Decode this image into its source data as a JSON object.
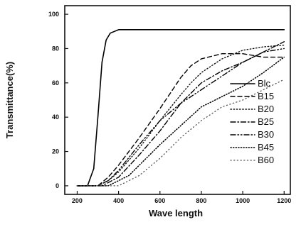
{
  "chart_data": {
    "type": "line",
    "xlabel": "Wave length",
    "ylabel": "Transmittance(%)",
    "xlim": [
      140,
      1230
    ],
    "ylim": [
      -5,
      105
    ],
    "xticks": [
      200,
      400,
      600,
      800,
      1000,
      1200
    ],
    "yticks": [
      0,
      20,
      40,
      60,
      80,
      100
    ],
    "grid": false,
    "legend_position": "right",
    "series": [
      {
        "name": "Blc",
        "style": "solid",
        "points": [
          [
            200,
            0
          ],
          [
            250,
            0
          ],
          [
            280,
            10
          ],
          [
            300,
            40
          ],
          [
            320,
            72
          ],
          [
            340,
            85
          ],
          [
            360,
            89
          ],
          [
            400,
            91
          ],
          [
            600,
            91
          ],
          [
            800,
            91
          ],
          [
            1000,
            91
          ],
          [
            1200,
            91
          ]
        ]
      },
      {
        "name": "B15",
        "style": "dashed",
        "points": [
          [
            200,
            0
          ],
          [
            300,
            0
          ],
          [
            350,
            5
          ],
          [
            400,
            12
          ],
          [
            500,
            28
          ],
          [
            600,
            45
          ],
          [
            650,
            54
          ],
          [
            700,
            63
          ],
          [
            750,
            70
          ],
          [
            800,
            74
          ],
          [
            900,
            77
          ],
          [
            1000,
            77
          ],
          [
            1100,
            75
          ],
          [
            1200,
            75
          ]
        ]
      },
      {
        "name": "B20",
        "style": "dotted",
        "points": [
          [
            200,
            0
          ],
          [
            300,
            0
          ],
          [
            350,
            3
          ],
          [
            400,
            8
          ],
          [
            500,
            22
          ],
          [
            600,
            38
          ],
          [
            700,
            53
          ],
          [
            750,
            60
          ],
          [
            800,
            66
          ],
          [
            900,
            74
          ],
          [
            1000,
            79
          ],
          [
            1100,
            81
          ],
          [
            1200,
            82
          ]
        ]
      },
      {
        "name": "B25",
        "style": "dashdot",
        "points": [
          [
            200,
            0
          ],
          [
            320,
            0
          ],
          [
            400,
            5
          ],
          [
            500,
            18
          ],
          [
            600,
            32
          ],
          [
            700,
            48
          ],
          [
            800,
            60
          ],
          [
            900,
            67
          ],
          [
            1000,
            72
          ],
          [
            1100,
            78
          ],
          [
            1200,
            84
          ]
        ]
      },
      {
        "name": "B30",
        "style": "dashdotdot",
        "points": [
          [
            200,
            0
          ],
          [
            300,
            0
          ],
          [
            350,
            3
          ],
          [
            400,
            9
          ],
          [
            500,
            24
          ],
          [
            600,
            38
          ],
          [
            700,
            48
          ],
          [
            800,
            56
          ],
          [
            900,
            64
          ],
          [
            1000,
            72
          ],
          [
            1100,
            78
          ],
          [
            1200,
            80
          ]
        ]
      },
      {
        "name": "B45",
        "style": "shortdot",
        "points": [
          [
            200,
            0
          ],
          [
            350,
            0
          ],
          [
            450,
            6
          ],
          [
            500,
            12
          ],
          [
            600,
            24
          ],
          [
            700,
            35
          ],
          [
            800,
            46
          ],
          [
            900,
            52
          ],
          [
            1000,
            58
          ],
          [
            1100,
            66
          ],
          [
            1200,
            75
          ]
        ]
      },
      {
        "name": "B60",
        "style": "sparse",
        "points": [
          [
            200,
            0
          ],
          [
            400,
            0
          ],
          [
            500,
            6
          ],
          [
            600,
            16
          ],
          [
            700,
            28
          ],
          [
            800,
            38
          ],
          [
            900,
            46
          ],
          [
            1000,
            50
          ],
          [
            1100,
            56
          ],
          [
            1200,
            62
          ]
        ]
      }
    ]
  }
}
